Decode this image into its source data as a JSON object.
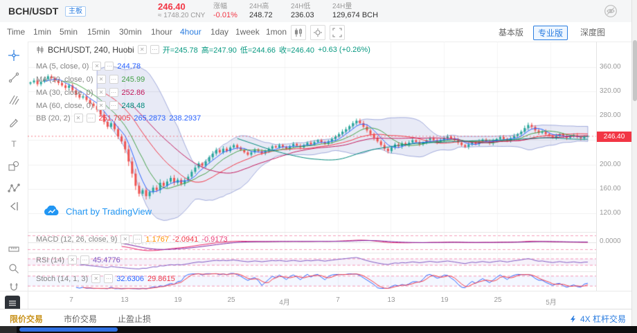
{
  "header": {
    "pair": "BCH/USDT",
    "board_badge": "主板",
    "price": "246.40",
    "price_cny": "≈ 1748.20 CNY",
    "change_label": "涨幅",
    "change_value": "-0.01%",
    "high_label": "24H高",
    "high_value": "248.72",
    "low_label": "24H低",
    "low_value": "236.03",
    "volume_label": "24H量",
    "volume_value": "129,674 BCH"
  },
  "toolbar": {
    "intervals": [
      "Time",
      "1min",
      "5min",
      "15min",
      "30min",
      "1hour",
      "4hour",
      "1day",
      "1week",
      "1mon"
    ],
    "active_interval": "4hour",
    "right_tabs": [
      "基本版",
      "专业版",
      "深度图"
    ],
    "active_right_tab": "专业版"
  },
  "icons": {
    "close_glyph": "✕",
    "more_glyph": "⋯"
  },
  "legend": {
    "title": "BCH/USDT, 240, Huobi",
    "ohlc": [
      "开=245.78",
      "高=247.90",
      "低=244.66",
      "收=246.40",
      "+0.63 (+0.26%)"
    ],
    "ma": [
      {
        "name": "MA (5, close, 0)",
        "value": "244.78",
        "color": "#2962ff"
      },
      {
        "name": "MA (10, close, 0)",
        "value": "245.99",
        "color": "#43a047"
      },
      {
        "name": "MA (30, close, 0)",
        "value": "252.86",
        "color": "#c2185b"
      },
      {
        "name": "MA (60, close, 0)",
        "value": "248.48",
        "color": "#00897b"
      }
    ],
    "bb": {
      "name": "BB (20, 2)",
      "values": [
        "251.7905",
        "265.2873",
        "238.2937"
      ]
    }
  },
  "panels": {
    "macd": {
      "name": "MACD (12, 26, close, 9)",
      "values": [
        "1.1767",
        "-2.0941",
        "-0.9173"
      ]
    },
    "rsi": {
      "name": "RSI (14)",
      "value": "45.4776"
    },
    "stoch": {
      "name": "Stoch (14, 1, 3)",
      "values": [
        "32.6306",
        "29.8615"
      ]
    }
  },
  "watermark": "Chart by TradingView",
  "bottom_tabs": [
    "限价交易",
    "市价交易",
    "止盈止损"
  ],
  "leverage_link": "4X 杠杆交易",
  "colors": {
    "accent_blue": "#2b7de0",
    "price_red": "#f23645",
    "ohlc_green": "#089981",
    "candle_up": "#26a69a",
    "candle_down": "#ef5350"
  },
  "chart_data": {
    "type": "candlestick",
    "pair": "BCH/USDT",
    "interval": "240",
    "exchange": "Huobi",
    "x_ticks": [
      "7",
      "13",
      "19",
      "25",
      "4月",
      "7",
      "13",
      "19",
      "25",
      "5月"
    ],
    "y_ticks": [
      "360.00",
      "320.00",
      "280.00",
      "240.00",
      "200.00",
      "160.00",
      "120.00"
    ],
    "y_range": [
      120,
      360
    ],
    "price_badge": "246.40",
    "macd_axis_label": "0.0000",
    "overlays": [
      "MA5",
      "MA10",
      "MA30",
      "MA60",
      "BB(20,2)"
    ],
    "sub_indicators": [
      "MACD(12,26,9)",
      "RSI(14)",
      "Stoch(14,1,3)"
    ],
    "close": [
      335,
      338,
      332,
      336,
      340,
      345,
      342,
      338,
      334,
      330,
      326,
      330,
      322,
      315,
      310,
      312,
      306,
      300,
      296,
      290,
      282,
      270,
      262,
      268,
      258,
      246,
      238,
      225,
      205,
      185,
      165,
      152,
      158,
      148,
      155,
      162,
      158,
      170,
      165,
      172,
      178,
      170,
      175,
      168,
      174,
      180,
      188,
      195,
      202,
      198,
      205,
      212,
      218,
      224,
      220,
      226,
      222,
      228,
      232,
      228,
      224,
      220,
      216,
      220,
      225,
      222,
      218,
      222,
      226,
      230,
      228,
      232,
      229,
      226,
      230,
      234,
      231,
      228,
      232,
      236,
      233,
      237,
      240,
      237,
      234,
      238,
      242,
      246,
      250,
      254,
      258,
      263,
      268,
      272,
      268,
      262,
      256,
      250,
      244,
      238,
      232,
      226,
      222,
      228,
      233,
      230,
      235,
      232,
      236,
      240,
      237,
      233,
      236,
      240,
      243,
      240,
      237,
      240,
      243,
      246,
      243,
      240,
      236,
      232,
      229,
      233,
      237,
      234,
      238,
      241,
      238,
      235,
      239,
      242,
      245,
      242,
      239,
      243,
      247,
      250,
      254,
      260,
      265,
      262,
      256,
      252,
      254,
      250,
      247,
      244,
      247,
      250,
      247,
      244,
      246,
      248,
      245,
      243,
      246,
      246.4
    ],
    "last_price": 246.4
  }
}
